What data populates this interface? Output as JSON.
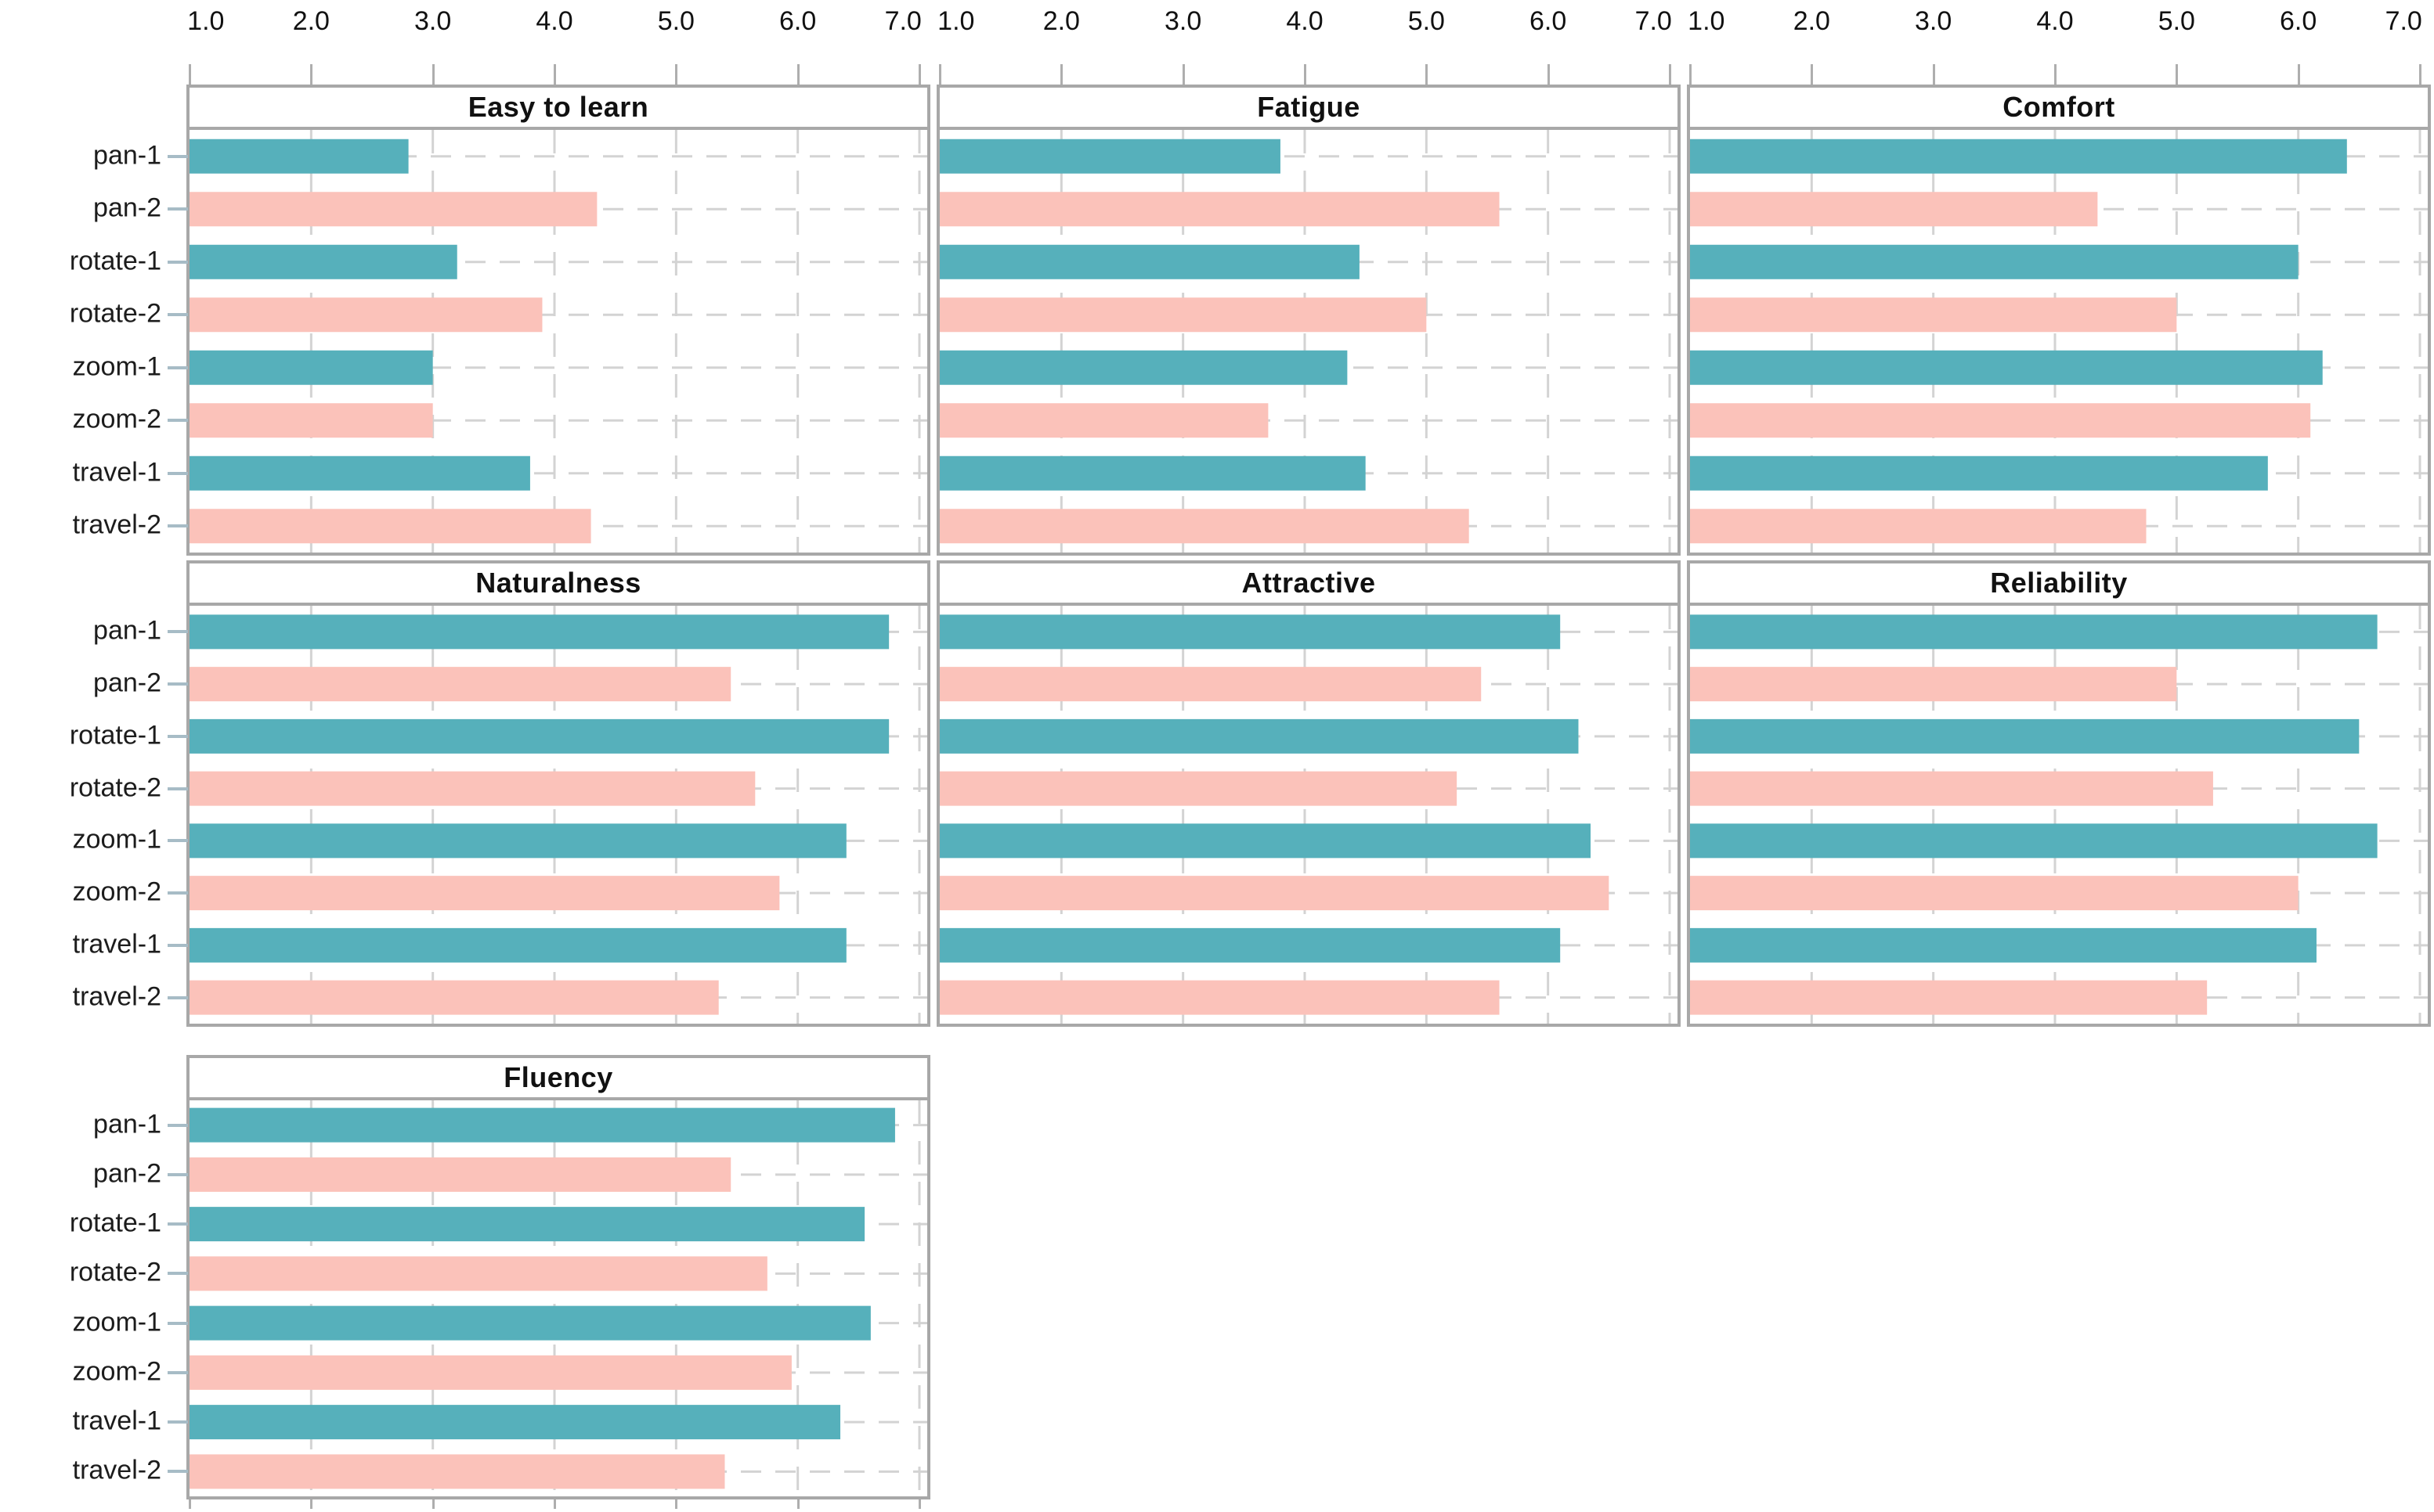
{
  "chart_data": {
    "type": "bar",
    "orientation": "horizontal",
    "title": "",
    "categories": [
      "pan-1",
      "pan-2",
      "rotate-1",
      "rotate-2",
      "zoom-1",
      "zoom-2",
      "travel-1",
      "travel-2"
    ],
    "x_axis": {
      "min": 1.0,
      "max": 7.0,
      "position": "top",
      "ticks": [
        "1.0",
        "2.0",
        "3.0",
        "4.0",
        "5.0",
        "6.0",
        "7.0"
      ],
      "tick_values": [
        1.0,
        2.0,
        3.0,
        4.0,
        5.0,
        6.0,
        7.0
      ],
      "labels_shown_only_above_first_row": true,
      "edge_labels_flush_inward": true
    },
    "grid": {
      "horizontal_dashed_lines_per_category": true,
      "vertical_dashed_lines_per_tick": true,
      "gridline_color": "#d3d3d3"
    },
    "legend": "none",
    "layout_hint": {
      "columns": 3,
      "facet_rows": 3
    },
    "series_colors": {
      "condition-1": "#56B0BB",
      "condition-2": "#FBC2BA"
    },
    "color_rule": "categories ending in -1 use condition-1 (teal), categories ending in -2 use condition-2 (pink)",
    "panels": [
      {
        "title": "Easy to learn",
        "values": [
          2.8,
          4.35,
          3.2,
          3.9,
          3.0,
          3.0,
          3.8,
          4.3
        ]
      },
      {
        "title": "Fatigue",
        "values": [
          3.8,
          5.6,
          4.45,
          5.0,
          4.35,
          3.7,
          4.5,
          5.35
        ]
      },
      {
        "title": "Comfort",
        "values": [
          6.4,
          4.35,
          6.0,
          5.0,
          6.2,
          6.1,
          5.75,
          4.75
        ]
      },
      {
        "title": "Naturalness",
        "values": [
          6.75,
          5.45,
          6.75,
          5.65,
          6.4,
          5.85,
          6.4,
          5.35
        ]
      },
      {
        "title": "Attractive",
        "values": [
          6.1,
          5.45,
          6.25,
          5.25,
          6.35,
          6.5,
          6.1,
          5.6
        ]
      },
      {
        "title": "Reliability",
        "values": [
          6.65,
          5.0,
          6.5,
          5.3,
          6.65,
          6.0,
          6.15,
          5.25
        ]
      },
      {
        "title": "Fluency",
        "values": [
          6.8,
          5.45,
          6.55,
          5.75,
          6.6,
          5.95,
          6.35,
          5.4
        ]
      }
    ],
    "panel_border_color": "#a8a8a8",
    "text_color": "#111111"
  }
}
